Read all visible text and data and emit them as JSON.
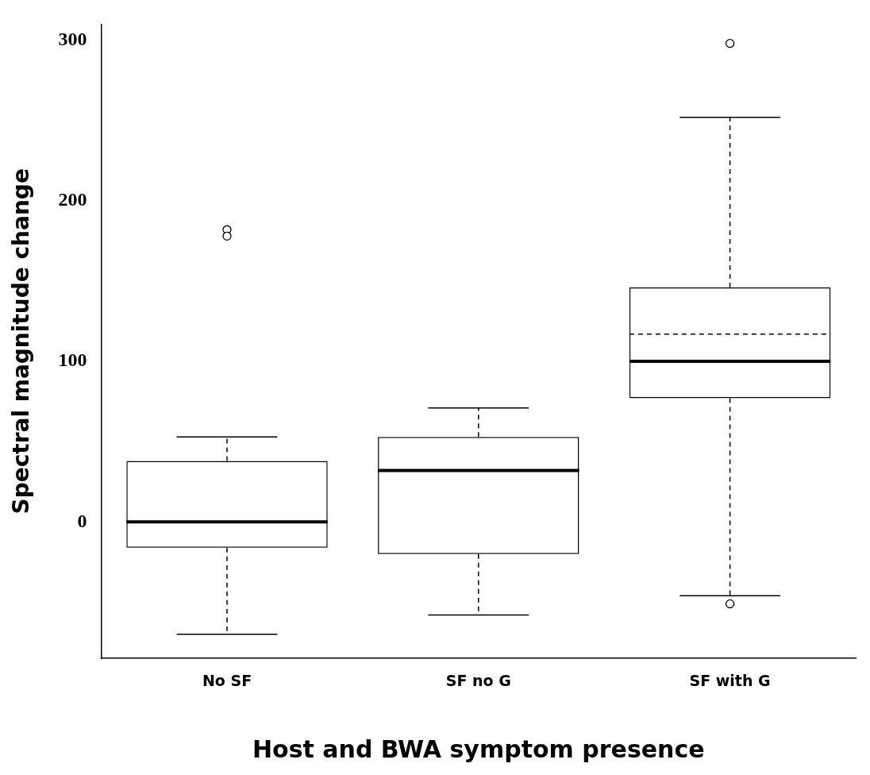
{
  "chart_data": {
    "type": "box",
    "xlabel": "Host and BWA symptom presence",
    "ylabel": "Spectral magnitude change",
    "categories": [
      "No SF",
      "SF no G",
      "SF with G"
    ],
    "boxes": [
      {
        "low": -70,
        "q1": -16,
        "median": 0,
        "q3": 38,
        "high": 53,
        "outliers": [
          182,
          178
        ]
      },
      {
        "low": -58,
        "q1": -20,
        "median": 32,
        "q3": 53,
        "high": 71
      },
      {
        "low": -46,
        "q1": 77,
        "median": 100,
        "q3": 146,
        "high": 252,
        "mean": 117,
        "outliers": [
          298,
          -51
        ]
      }
    ],
    "color": "#000000",
    "ylim": [
      -85,
      310
    ],
    "yticks": [
      0,
      100,
      200,
      300
    ],
    "grid": false,
    "legend": false
  }
}
